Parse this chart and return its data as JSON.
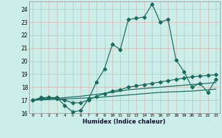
{
  "xlabel": "Humidex (Indice chaleur)",
  "xlim": [
    -0.5,
    23.5
  ],
  "ylim": [
    16.0,
    24.6
  ],
  "yticks": [
    16,
    17,
    18,
    19,
    20,
    21,
    22,
    23,
    24
  ],
  "xticks": [
    0,
    1,
    2,
    3,
    4,
    5,
    6,
    7,
    8,
    9,
    10,
    11,
    12,
    13,
    14,
    15,
    16,
    17,
    18,
    19,
    20,
    21,
    22,
    23
  ],
  "bg_color": "#cceee8",
  "grid_color": "#d4b8b8",
  "line_color": "#1a6b5e",
  "line1_x": [
    0,
    1,
    2,
    3,
    4,
    5,
    6,
    7,
    8,
    9,
    10,
    11,
    12,
    13,
    14,
    15,
    16,
    17,
    18,
    19,
    20,
    21,
    22,
    23
  ],
  "line1_y": [
    17.0,
    17.2,
    17.2,
    17.2,
    16.6,
    16.1,
    16.2,
    17.1,
    18.4,
    19.4,
    21.3,
    20.9,
    23.2,
    23.3,
    23.4,
    24.4,
    23.0,
    23.2,
    20.1,
    19.2,
    18.0,
    18.3,
    17.6,
    18.6
  ],
  "line2_x": [
    0,
    1,
    2,
    3,
    4,
    5,
    6,
    7,
    8,
    9,
    10,
    11,
    12,
    13,
    14,
    15,
    16,
    17,
    18,
    19,
    20,
    21,
    22,
    23
  ],
  "line2_y": [
    17.0,
    17.1,
    17.2,
    17.1,
    17.0,
    16.8,
    16.8,
    17.0,
    17.3,
    17.5,
    17.7,
    17.8,
    18.0,
    18.1,
    18.2,
    18.3,
    18.4,
    18.5,
    18.6,
    18.7,
    18.8,
    18.85,
    18.9,
    18.95
  ],
  "line3_x": [
    0,
    2,
    4,
    6,
    8,
    10,
    12,
    14,
    16,
    18,
    20,
    22,
    23
  ],
  "line3_y": [
    17.0,
    17.1,
    17.2,
    17.3,
    17.45,
    17.6,
    17.8,
    17.9,
    18.0,
    18.1,
    18.2,
    18.3,
    18.35
  ],
  "line4_x": [
    0,
    2,
    4,
    6,
    8,
    10,
    12,
    14,
    16,
    18,
    20,
    22,
    23
  ],
  "line4_y": [
    17.0,
    17.05,
    17.1,
    17.15,
    17.2,
    17.3,
    17.4,
    17.5,
    17.6,
    17.65,
    17.7,
    17.8,
    17.85
  ]
}
